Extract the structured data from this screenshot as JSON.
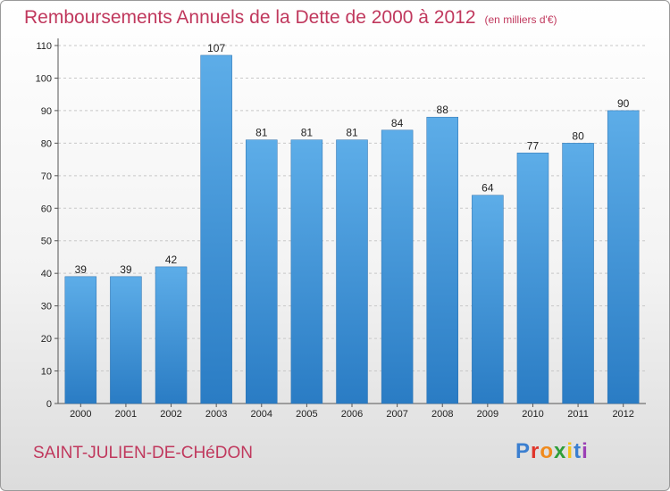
{
  "title": {
    "main": "Remboursements Annuels de la Dette de 2000 à 2012",
    "unit": "(en milliers d'€)"
  },
  "city": "SAINT-JULIEN-DE-CHéDON",
  "logo": {
    "letters": [
      "P",
      "r",
      "o",
      "x",
      "i",
      "t",
      "i"
    ],
    "colors": [
      "#3b7fd0",
      "#e0352b",
      "#f08a1c",
      "#2f9e3a",
      "#f3c21a",
      "#3b7fd0",
      "#9b3fb5"
    ]
  },
  "colors": {
    "accent": "#c0385d",
    "bar_top": "#5dade8",
    "bar_bottom": "#2a7cc4"
  },
  "chart_data": {
    "type": "bar",
    "title": "Remboursements Annuels de la Dette de 2000 à 2012",
    "categories": [
      "2000",
      "2001",
      "2002",
      "2003",
      "2004",
      "2005",
      "2006",
      "2007",
      "2008",
      "2009",
      "2010",
      "2011",
      "2012"
    ],
    "values": [
      39,
      39,
      42,
      107,
      81,
      81,
      81,
      84,
      88,
      64,
      77,
      80,
      90
    ],
    "yticks": [
      "0",
      "10",
      "20",
      "30",
      "40",
      "50",
      "60",
      "70",
      "80",
      "90",
      "100",
      "110"
    ],
    "ylim": [
      0,
      110
    ],
    "grid": true,
    "data_labels": true
  }
}
